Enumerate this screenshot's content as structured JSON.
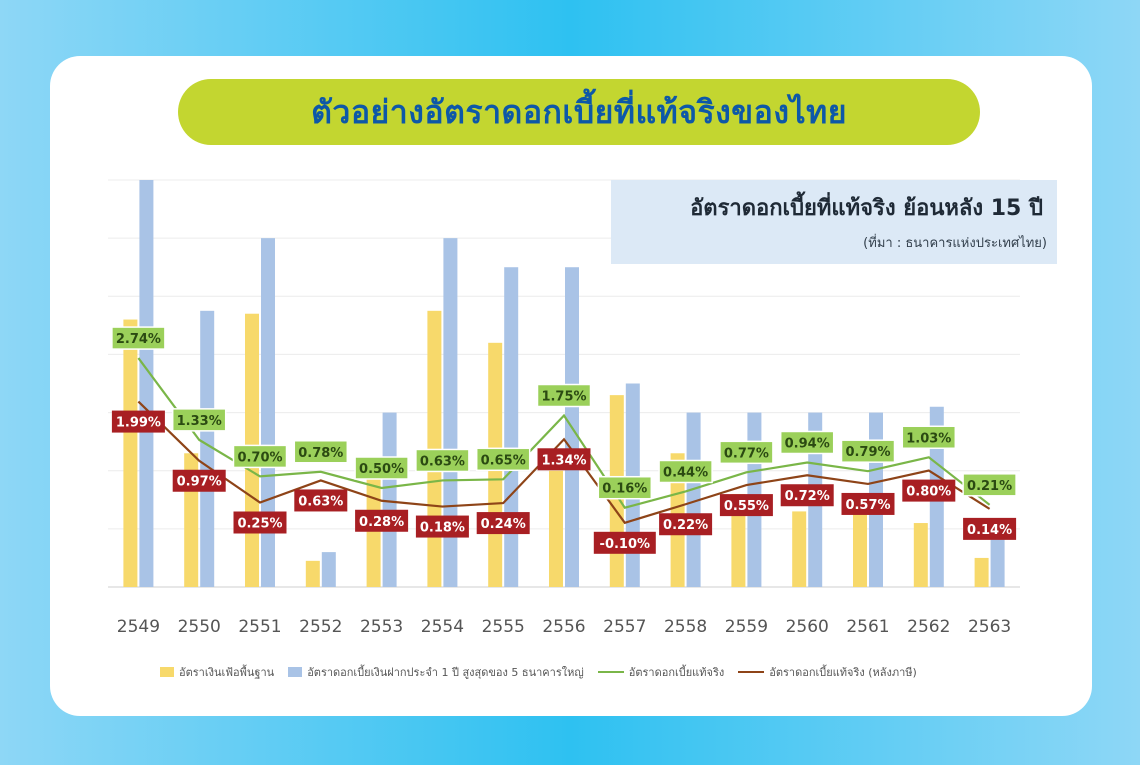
{
  "header": {
    "title": "ตัวอย่างอัตราดอกเบี้ยที่แท้จริงของไทย"
  },
  "info_box": {
    "title": "อัตราดอกเบี้ยที่แท้จริง ย้อนหลัง 15 ปี",
    "source": "(ที่มา : ธนาคารแห่งประเทศไทย)"
  },
  "colors": {
    "background": "#2ec1f1",
    "title_pill": "#c3d630",
    "title_text": "#0d58a8",
    "bar_inflation": "#f7d96b",
    "bar_deposit": "#a9c3e6",
    "line_real": "#7ab648",
    "line_after_tax": "#8e4418",
    "label_green": "#9bd05a",
    "label_red": "#a81f23"
  },
  "chart_data": {
    "type": "bar",
    "categories": [
      "2549",
      "2550",
      "2551",
      "2552",
      "2553",
      "2554",
      "2555",
      "2556",
      "2557",
      "2558",
      "2559",
      "2560",
      "2561",
      "2562",
      "2563"
    ],
    "ylim": [
      0,
      7
    ],
    "grid": true,
    "legend_position": "bottom",
    "series": [
      {
        "name": "อัตราเงินเฟ้อพื้นฐาน",
        "kind": "bar",
        "values": [
          4.6,
          2.3,
          4.7,
          0.45,
          2.0,
          4.75,
          4.2,
          2.0,
          3.3,
          2.3,
          1.6,
          1.3,
          1.45,
          1.1,
          0.5
        ]
      },
      {
        "name": "อัตราดอกเบี้ยเงินฝากประจำ 1 ปี สูงสุดของ 5 ธนาคารใหญ่",
        "kind": "bar",
        "values": [
          7.0,
          4.75,
          6.0,
          0.6,
          3.0,
          6.0,
          5.5,
          5.5,
          3.5,
          3.0,
          3.0,
          3.0,
          3.0,
          3.1,
          1.0
        ]
      },
      {
        "name": "อัตราดอกเบี้ยแท้จริง",
        "kind": "line",
        "values": [
          2.74,
          1.33,
          0.7,
          0.78,
          0.5,
          0.63,
          0.65,
          1.75,
          0.16,
          0.44,
          0.77,
          0.94,
          0.79,
          1.03,
          0.21
        ]
      },
      {
        "name": "อัตราดอกเบี้ยแท้จริง (หลังภาษี)",
        "kind": "line",
        "values": [
          1.99,
          0.97,
          0.25,
          0.63,
          0.28,
          0.18,
          0.24,
          1.34,
          -0.1,
          0.22,
          0.55,
          0.72,
          0.57,
          0.8,
          0.14
        ]
      }
    ],
    "data_labels": {
      "real": [
        "2.74%",
        "1.33%",
        "0.70%",
        "0.78%",
        "0.50%",
        "0.63%",
        "0.65%",
        "1.75%",
        "0.16%",
        "0.44%",
        "0.77%",
        "0.94%",
        "0.79%",
        "1.03%",
        "0.21%"
      ],
      "after_tax": [
        "1.99%",
        "0.97%",
        "0.25%",
        "0.63%",
        "0.28%",
        "0.18%",
        "0.24%",
        "1.34%",
        "-0.10%",
        "0.22%",
        "0.55%",
        "0.72%",
        "0.57%",
        "0.80%",
        "0.14%"
      ]
    }
  }
}
